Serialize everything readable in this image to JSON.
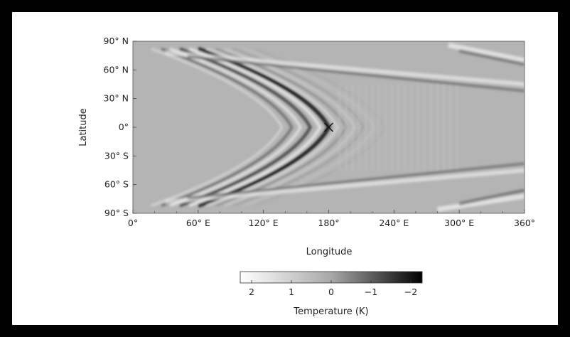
{
  "chart_data": {
    "type": "heatmap",
    "title": "",
    "xlabel": "Longitude",
    "ylabel": "Latitude",
    "x_ticks": [
      "0°",
      "60° E",
      "120° E",
      "180°",
      "240° E",
      "300° E",
      "360°"
    ],
    "y_ticks": [
      "90° N",
      "60° N",
      "30° N",
      "0°",
      "30° S",
      "60° S",
      "90° S"
    ],
    "xlim": [
      0,
      360
    ],
    "ylim": [
      -90,
      90
    ],
    "colorbar": {
      "label": "Temperature (K)",
      "ticks": [
        "2",
        "1",
        "0",
        "−1",
        "−2"
      ],
      "range": [
        2,
        -2
      ],
      "colormap": "white-to-black"
    },
    "marker": {
      "symbol": "X",
      "lon": 180,
      "lat": 0
    },
    "description_features": {
      "pattern": "chevron-shaped wave fronts converging at (180°, 0°)",
      "high_lat_bands": "diagonal streaks near 60° N and 60° S"
    },
    "colors": {
      "background": "#000000",
      "panel": "#ffffff",
      "base_gray": "#b4b4b4"
    }
  }
}
